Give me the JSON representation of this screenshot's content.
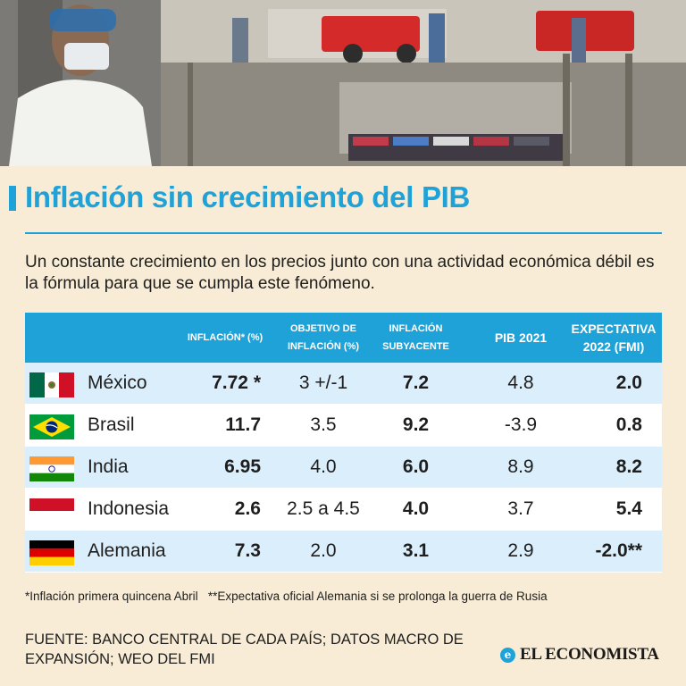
{
  "title": "Inflación sin crecimiento del PIB",
  "subtitle": "Un constante crecimiento en los precios junto con una actividad económica débil es la fórmula para que se cumpla este fenómeno.",
  "colors": {
    "accent": "#1fa2d8",
    "background": "#f8ecd6",
    "row_alt": "#dbeefb",
    "row_plain": "#ffffff"
  },
  "photo": {
    "icon": "street-market-photo"
  },
  "chart_data": {
    "type": "table",
    "columns": [
      "",
      "Inflación* (%)",
      "Objetivo de inflación (%)",
      "Inflación subyacente",
      "PIB 2021",
      "Expectativa 2022 (FMI)"
    ],
    "header_display": {
      "inflacion": "INFLACIÓN* (%)",
      "objetivo": "OBJETIVO DE\nINFLACIÓN (%)",
      "subyacente": "INFLACIÓN\nSUBYACENTE",
      "pib": "PIB 2021",
      "expectativa": "EXPECTATIVA\n2022 (FMI)"
    },
    "rows": [
      {
        "country": "México",
        "flag": "mexico-flag",
        "inflacion": "7.72 *",
        "objetivo": "3 +/-1",
        "subyacente": "7.2",
        "pib": "4.8",
        "expectativa": "2.0"
      },
      {
        "country": "Brasil",
        "flag": "brazil-flag",
        "inflacion": "11.7",
        "objetivo": "3.5",
        "subyacente": "9.2",
        "pib": "-3.9",
        "expectativa": "0.8"
      },
      {
        "country": "India",
        "flag": "india-flag",
        "inflacion": "6.95",
        "objetivo": "4.0",
        "subyacente": "6.0",
        "pib": "8.9",
        "expectativa": "8.2"
      },
      {
        "country": "Indonesia",
        "flag": "indonesia-flag",
        "inflacion": "2.6",
        "objetivo": "2.5 a 4.5",
        "subyacente": "4.0",
        "pib": "3.7",
        "expectativa": "5.4"
      },
      {
        "country": "Alemania",
        "flag": "germany-flag",
        "inflacion": "7.3",
        "objetivo": "2.0",
        "subyacente": "3.1",
        "pib": "2.9",
        "expectativa": "-2.0**"
      }
    ]
  },
  "footnote": "*Inflación primera quincena Abril   **Expectativa oficial Alemania si se prolonga la guerra de Rusia",
  "source": "Fuente: Banco Central de cada país; Datos macro de Expansión; WEO del FMI",
  "logo": {
    "mark": "e",
    "text": "EL ECONOMISTA",
    "icon": "el-economista-logo-icon"
  }
}
